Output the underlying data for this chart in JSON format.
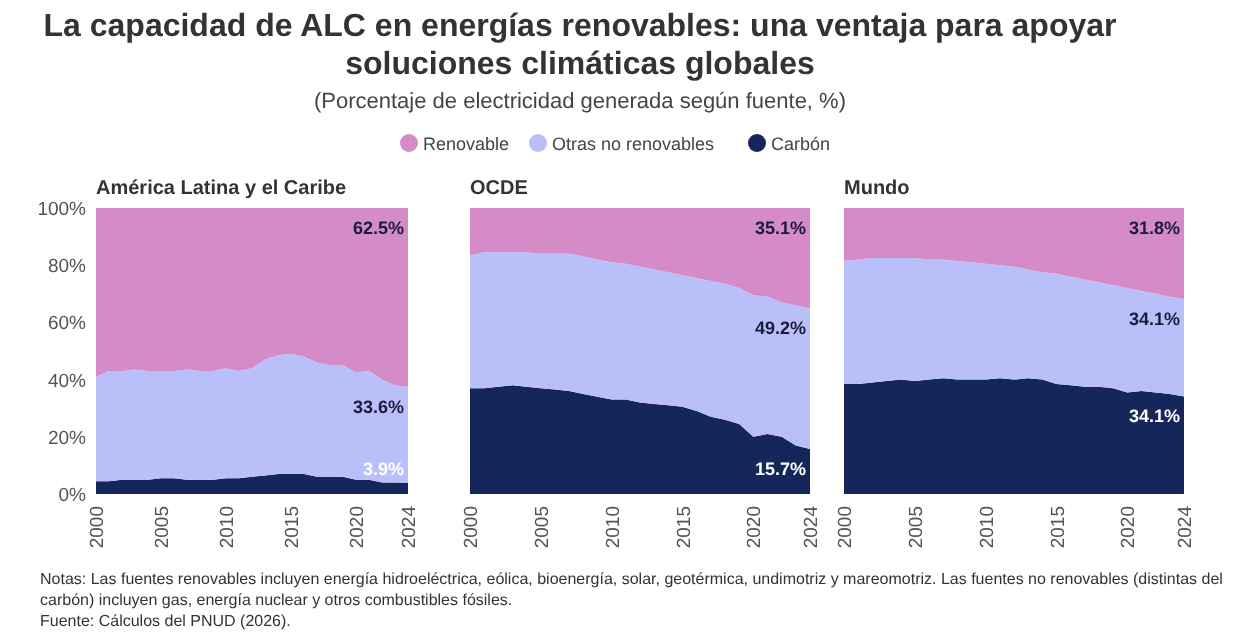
{
  "chart_data": [
    {
      "type": "other",
      "title": "La capacidad de ALC en energías renovables: una ventaja para apoyar soluciones climáticas globales",
      "subtitle": "(Porcentaje de electricidad generada según fuente, %)",
      "annotations": [
        "Notas: Las fuentes renovables incluyen energía hidroeléctrica, eólica, bioenergía, solar, geotérmica, undimotriz y mareomotriz. Las fuentes no renovables (distintas del carbón) incluyen gas, energía nuclear y otros combustibles fósiles.",
        "Fuente: Cálculos del PNUD (2026)."
      ]
    },
    {
      "type": "area",
      "stacked": true,
      "title": "América Latina y el Caribe",
      "legend": "top",
      "x": [
        2000,
        2001,
        2002,
        2003,
        2004,
        2005,
        2006,
        2007,
        2008,
        2009,
        2010,
        2011,
        2012,
        2013,
        2014,
        2015,
        2016,
        2017,
        2018,
        2019,
        2020,
        2021,
        2022,
        2023,
        2024
      ],
      "xlim": [
        2000,
        2024
      ],
      "xticks": [
        2000,
        2005,
        2010,
        2015,
        2020,
        2024
      ],
      "ylim": [
        0,
        100
      ],
      "yticks": [
        {
          "value": 0,
          "label": "0%"
        },
        {
          "value": 20,
          "label": "20%"
        },
        {
          "value": 40,
          "label": "40%"
        },
        {
          "value": 60,
          "label": "60%"
        },
        {
          "value": 80,
          "label": "80%"
        },
        {
          "value": 100,
          "label": "100%"
        }
      ],
      "series": [
        {
          "name": "Carbón",
          "color": "#14265a",
          "values": [
            4.5,
            4.5,
            5,
            5,
            5,
            5.5,
            5.5,
            5,
            5,
            5,
            5.5,
            5.5,
            6,
            6.5,
            7,
            7,
            7,
            6,
            6,
            6,
            5,
            5,
            4,
            4,
            3.9
          ],
          "value_labels": [
            null,
            null,
            null,
            null,
            null,
            null,
            null,
            null,
            null,
            null,
            null,
            null,
            null,
            null,
            null,
            null,
            null,
            null,
            null,
            null,
            null,
            null,
            null,
            null,
            "3.9%"
          ]
        },
        {
          "name": "Otras no renovables",
          "color": "#b9c0f9",
          "values": [
            36.5,
            38.5,
            38,
            38.5,
            38,
            37.5,
            37.5,
            38.5,
            38,
            38,
            38.5,
            37.5,
            38,
            40.5,
            41.5,
            42,
            41,
            40,
            39,
            39,
            37.5,
            38,
            36,
            34,
            33.6
          ],
          "value_labels": [
            null,
            null,
            null,
            null,
            null,
            null,
            null,
            null,
            null,
            null,
            null,
            null,
            null,
            null,
            null,
            null,
            null,
            null,
            null,
            null,
            null,
            null,
            null,
            null,
            "33.6%"
          ]
        },
        {
          "name": "Renovable",
          "color": "#d48bc8",
          "values": [
            59,
            57,
            57,
            56.5,
            57,
            57,
            57,
            56.5,
            57,
            57,
            56,
            57,
            56,
            53,
            51.5,
            51,
            52,
            54,
            55,
            55,
            57.5,
            57,
            60,
            62,
            62.5
          ],
          "value_labels": [
            null,
            null,
            null,
            null,
            null,
            null,
            null,
            null,
            null,
            null,
            null,
            null,
            null,
            null,
            null,
            null,
            null,
            null,
            null,
            null,
            null,
            null,
            null,
            null,
            "62.5%"
          ]
        }
      ]
    },
    {
      "type": "area",
      "stacked": true,
      "title": "OCDE",
      "tick_labels": "x",
      "x": [
        2000,
        2001,
        2002,
        2003,
        2004,
        2005,
        2006,
        2007,
        2008,
        2009,
        2010,
        2011,
        2012,
        2013,
        2014,
        2015,
        2016,
        2017,
        2018,
        2019,
        2020,
        2021,
        2022,
        2023,
        2024
      ],
      "xlim": [
        2000,
        2024
      ],
      "xticks": [
        2000,
        2005,
        2010,
        2015,
        2020,
        2024
      ],
      "ylim": [
        0,
        100
      ],
      "series": [
        {
          "color": "#14265a",
          "values": [
            37,
            37,
            37.5,
            38,
            37.5,
            37,
            36.5,
            36,
            35,
            34,
            33,
            33,
            32,
            31.5,
            31,
            30.5,
            29,
            27,
            26,
            24.5,
            20,
            21,
            20,
            17,
            15.7
          ],
          "value_labels": [
            null,
            null,
            null,
            null,
            null,
            null,
            null,
            null,
            null,
            null,
            null,
            null,
            null,
            null,
            null,
            null,
            null,
            null,
            null,
            null,
            null,
            null,
            null,
            null,
            "15.7%"
          ]
        },
        {
          "color": "#b9c0f9",
          "values": [
            46.5,
            47.5,
            47,
            46.5,
            47,
            47,
            47.5,
            48,
            48,
            48,
            48,
            47.5,
            47.5,
            47,
            46.5,
            46,
            46.5,
            47.5,
            47.5,
            47.5,
            49.5,
            48,
            47,
            49,
            49.2
          ],
          "value_labels": [
            null,
            null,
            null,
            null,
            null,
            null,
            null,
            null,
            null,
            null,
            null,
            null,
            null,
            null,
            null,
            null,
            null,
            null,
            null,
            null,
            null,
            null,
            null,
            null,
            "49.2%"
          ]
        },
        {
          "color": "#d48bc8",
          "values": [
            16.5,
            15.5,
            15.5,
            15.5,
            15.5,
            16,
            16,
            16,
            17,
            18,
            19,
            19.5,
            20.5,
            21.5,
            22.5,
            23.5,
            24.5,
            25.5,
            26.5,
            28,
            30.5,
            31,
            33,
            34,
            35.1
          ],
          "value_labels": [
            null,
            null,
            null,
            null,
            null,
            null,
            null,
            null,
            null,
            null,
            null,
            null,
            null,
            null,
            null,
            null,
            null,
            null,
            null,
            null,
            null,
            null,
            null,
            null,
            "35.1%"
          ]
        }
      ]
    },
    {
      "type": "area",
      "stacked": true,
      "title": "Mundo",
      "tick_labels": "x",
      "x": [
        2000,
        2001,
        2002,
        2003,
        2004,
        2005,
        2006,
        2007,
        2008,
        2009,
        2010,
        2011,
        2012,
        2013,
        2014,
        2015,
        2016,
        2017,
        2018,
        2019,
        2020,
        2021,
        2022,
        2023,
        2024
      ],
      "xlim": [
        2000,
        2024
      ],
      "xticks": [
        2000,
        2005,
        2010,
        2015,
        2020,
        2024
      ],
      "ylim": [
        0,
        100
      ],
      "series": [
        {
          "color": "#14265a",
          "values": [
            38.5,
            38.5,
            39,
            39.5,
            40,
            39.5,
            40,
            40.5,
            40,
            40,
            40,
            40.5,
            40,
            40.5,
            40,
            38.5,
            38,
            37.5,
            37.5,
            37,
            35.5,
            36,
            35.5,
            35,
            34.1
          ],
          "value_labels": [
            null,
            null,
            null,
            null,
            null,
            null,
            null,
            null,
            null,
            null,
            null,
            null,
            null,
            null,
            null,
            null,
            null,
            null,
            null,
            null,
            null,
            null,
            null,
            null,
            "34.1%"
          ]
        },
        {
          "color": "#b9c0f9",
          "values": [
            43,
            43.5,
            43.5,
            43,
            42.5,
            43,
            42,
            41.5,
            41.5,
            41,
            40.5,
            39.5,
            39.5,
            38,
            37.5,
            38.5,
            38,
            37.5,
            36.5,
            36,
            36.5,
            35,
            34.5,
            34,
            34.1
          ],
          "value_labels": [
            null,
            null,
            null,
            null,
            null,
            null,
            null,
            null,
            null,
            null,
            null,
            null,
            null,
            null,
            null,
            null,
            null,
            null,
            null,
            null,
            null,
            null,
            null,
            null,
            "34.1%"
          ]
        },
        {
          "color": "#d48bc8",
          "values": [
            18.5,
            18,
            17.5,
            17.5,
            17.5,
            17.5,
            18,
            18,
            18.5,
            19,
            19.5,
            20,
            20.5,
            21.5,
            22.5,
            23,
            24,
            25,
            26,
            27,
            28,
            29,
            30,
            31,
            31.8
          ],
          "value_labels": [
            null,
            null,
            null,
            null,
            null,
            null,
            null,
            null,
            null,
            null,
            null,
            null,
            null,
            null,
            null,
            null,
            null,
            null,
            null,
            null,
            null,
            null,
            null,
            null,
            "31.8%"
          ]
        }
      ]
    }
  ]
}
